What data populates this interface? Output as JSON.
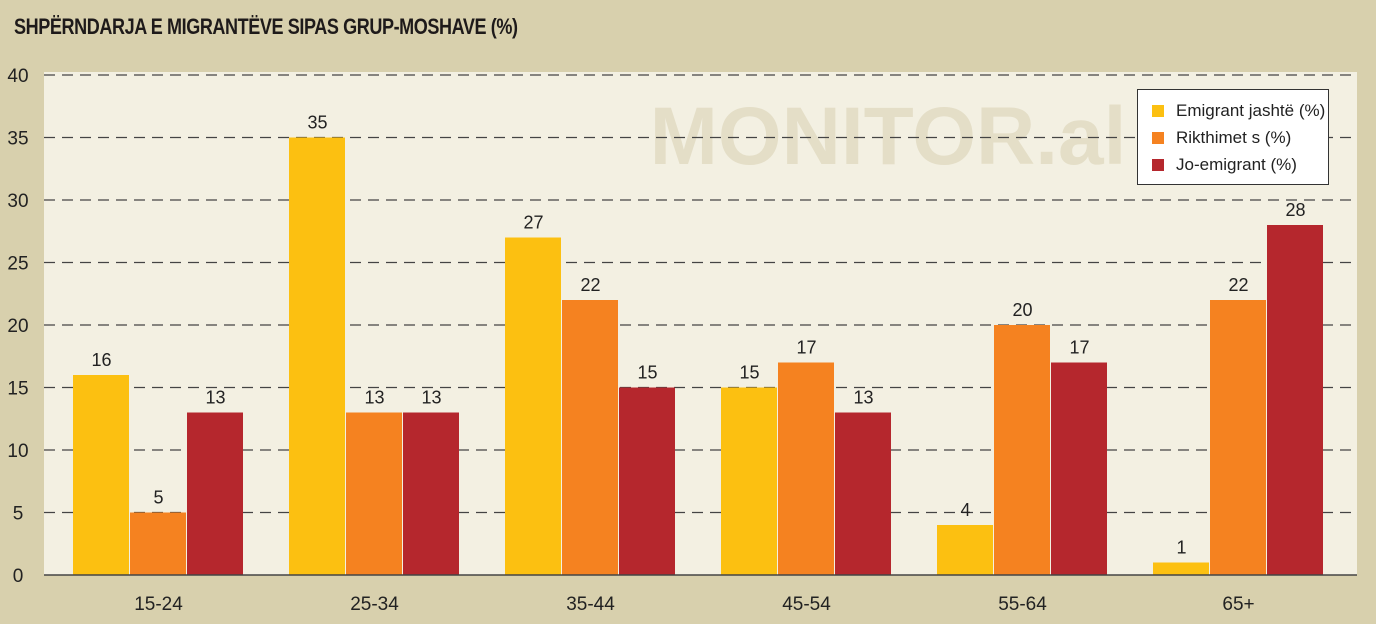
{
  "chart_data": {
    "type": "bar",
    "title": "SHPËRNDARJA E MIGRANTËVE SIPAS GRUP-MOSHAVE (%)",
    "watermark": "MONITOR.al",
    "categories": [
      "15-24",
      "25-34",
      "35-44",
      "45-54",
      "55-64",
      "65+"
    ],
    "series": [
      {
        "name": "Emigrant jashtë (%)",
        "color": "#fcc011",
        "values": [
          16,
          35,
          27,
          15,
          4,
          1
        ]
      },
      {
        "name": "Rikthimet s (%)",
        "color": "#f58220",
        "values": [
          5,
          13,
          22,
          17,
          20,
          22
        ]
      },
      {
        "name": "Jo-emigrant (%)",
        "color": "#b5272d",
        "values": [
          13,
          13,
          15,
          13,
          17,
          28
        ]
      }
    ],
    "ylim": [
      0,
      40
    ],
    "yticks": [
      0,
      5,
      10,
      15,
      20,
      25,
      30,
      35,
      40
    ],
    "grid": true,
    "legend_position": "top-right",
    "xlabel": "",
    "ylabel": ""
  }
}
